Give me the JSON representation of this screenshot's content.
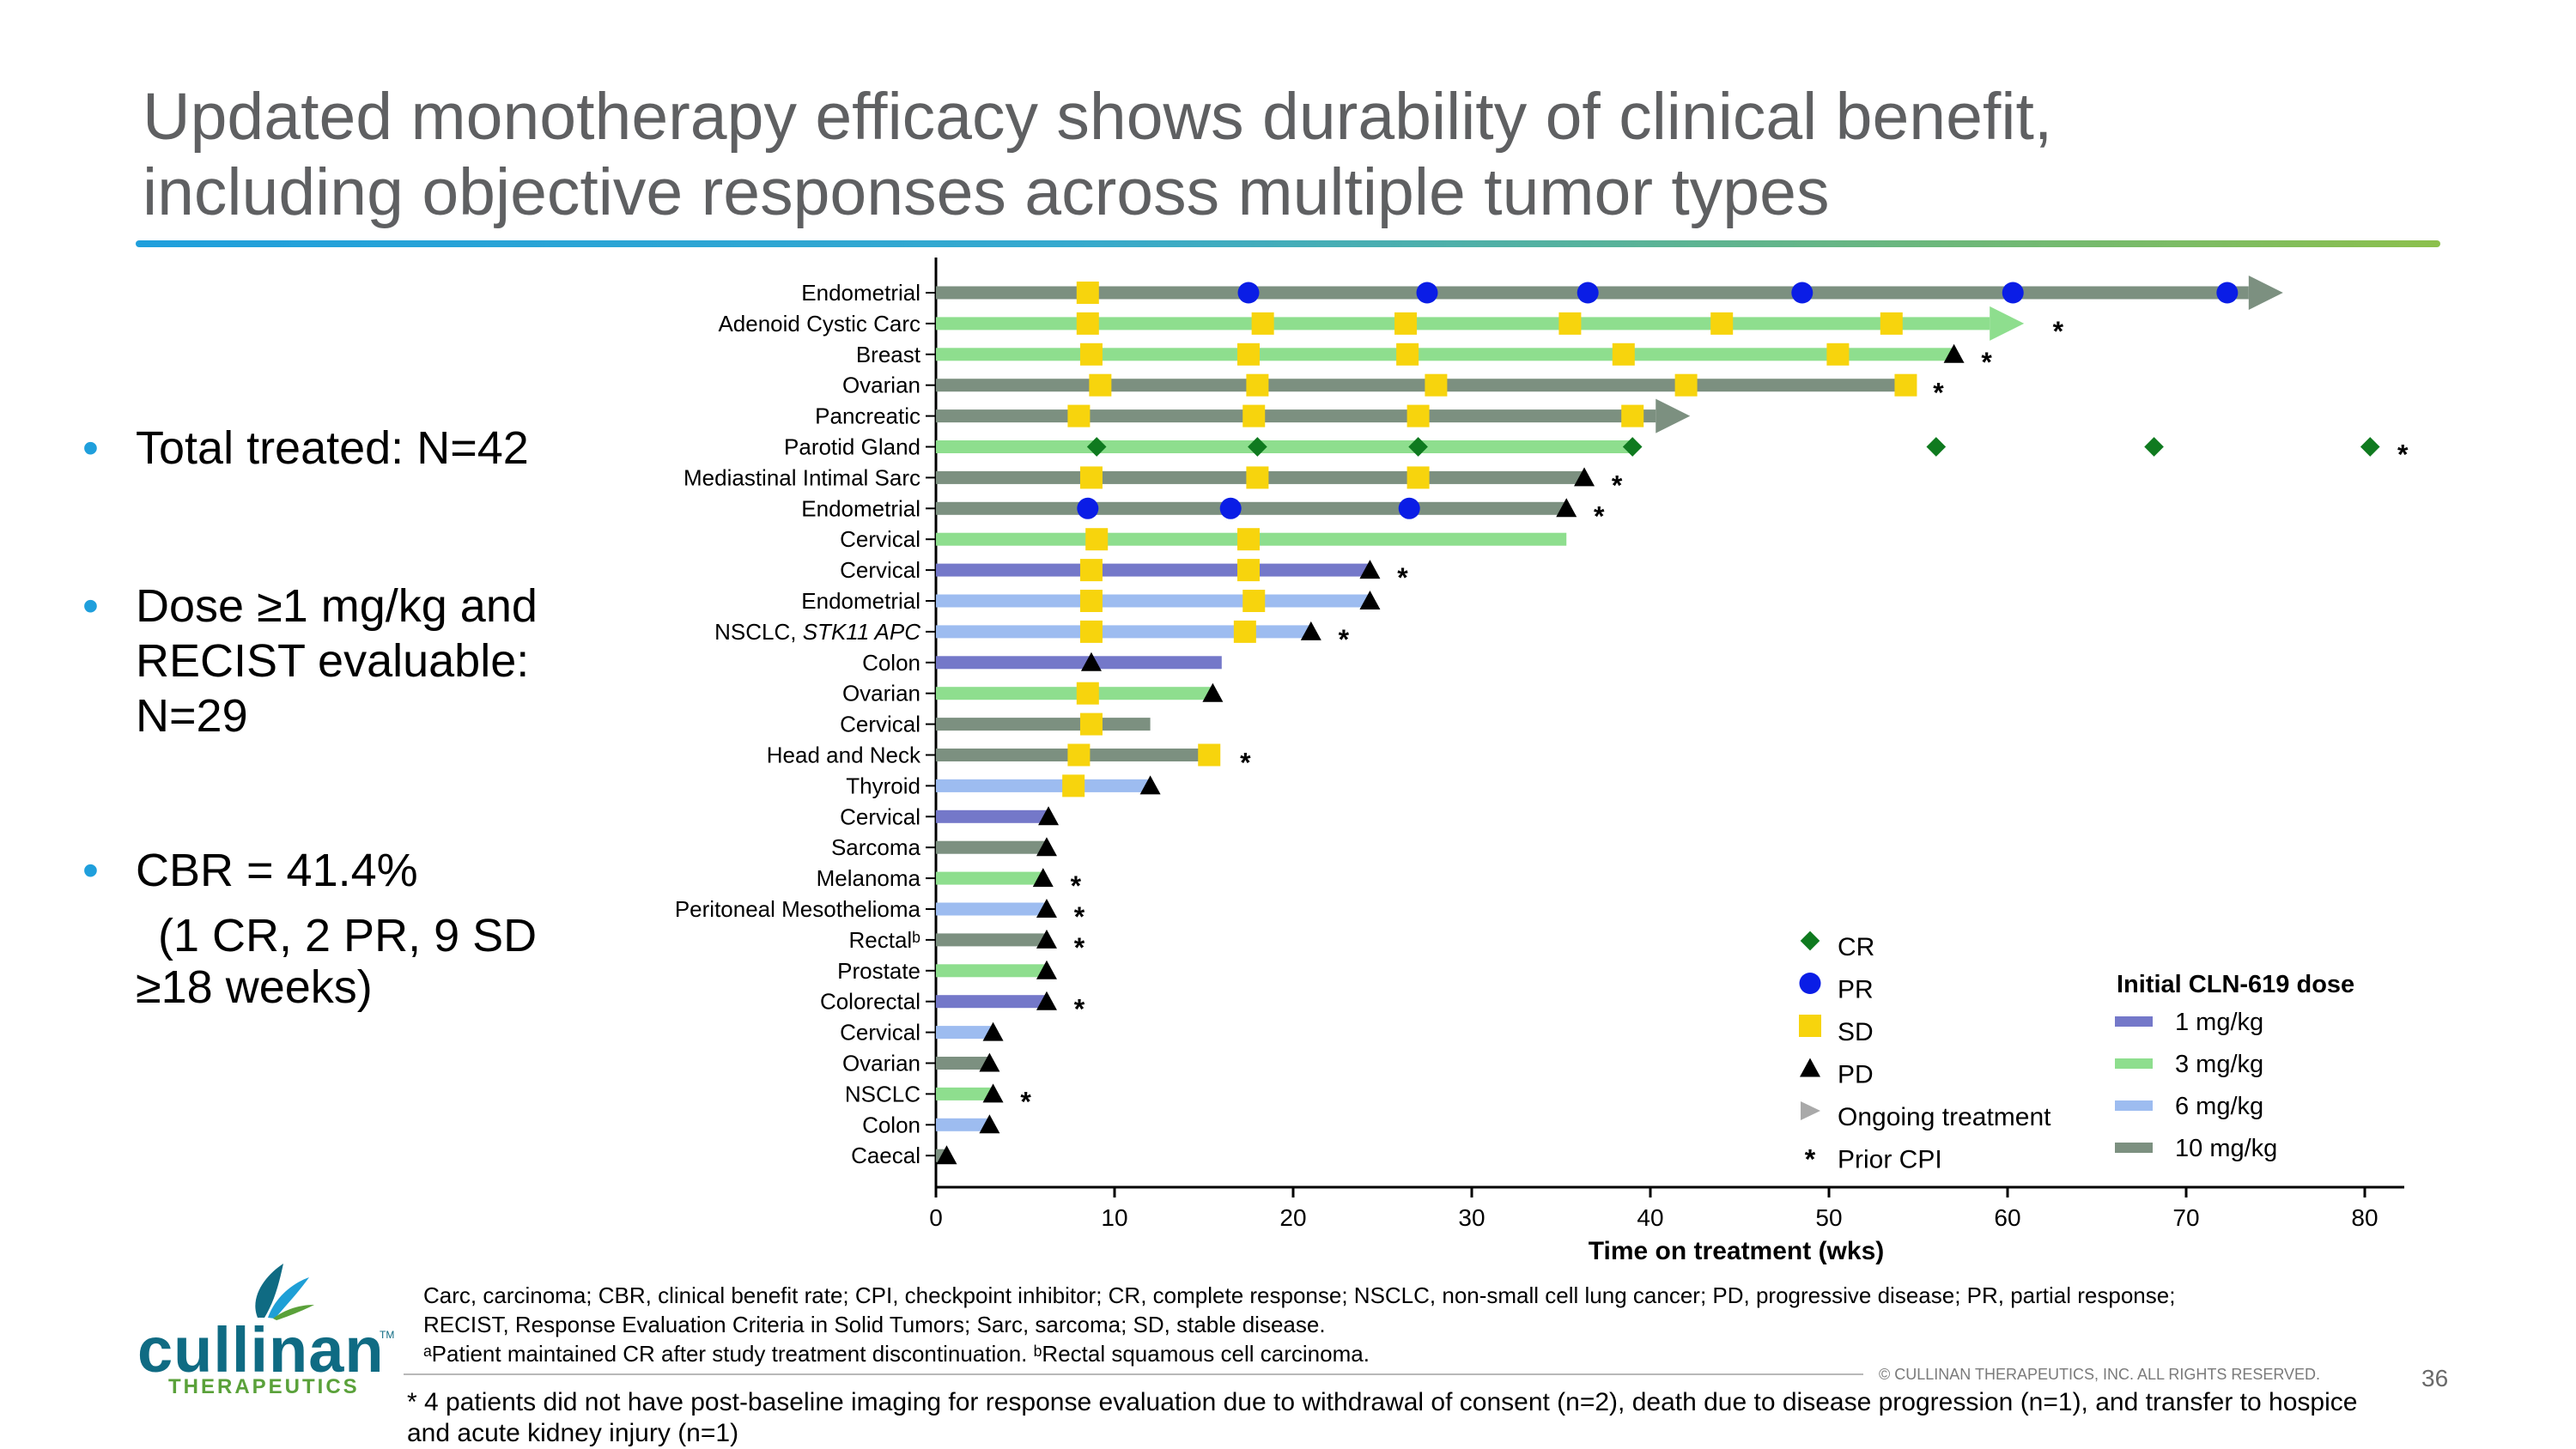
{
  "slide": {
    "title_line1": "Updated monotherapy efficacy shows durability of clinical benefit,",
    "title_line2": "including objective responses across multiple tumor types",
    "bullet1": "Total treated: N=42",
    "bullet2_line1": "Dose ≥1 mg/kg and",
    "bullet2_line2": "RECIST evaluable:",
    "bullet2_line3": "N=29",
    "bullet3_line1": "CBR = 41.4%",
    "bullet3_line2": "(1 CR, 2 PR, 9 SD",
    "bullet3_line3": "≥18 weeks)",
    "footer_line1": "Carc, carcinoma; CBR, clinical benefit rate; CPI, checkpoint inhibitor; CR, complete response; NSCLC, non-small cell lung cancer; PD, progressive disease; PR, partial response;",
    "footer_line2": "RECIST, Response Evaluation Criteria in Solid Tumors; Sarc, sarcoma; SD, stable disease.",
    "footer_line3": "ᵃPatient maintained CR after study treatment discontinuation. ᵇRectal squamous cell carcinoma.",
    "footnote": "* 4 patients did not have post-baseline imaging for response evaluation due to withdrawal of consent (n=2), death due to disease progression (n=1), and transfer to hospice and acute kidney injury (n=1)",
    "copyright": "© CULLINAN THERAPEUTICS, INC. ALL RIGHTS RESERVED.",
    "page_number": "36",
    "logo_word": "cullinan",
    "logo_sub": "THERAPEUTICS",
    "logo_tm": "TM"
  },
  "colors": {
    "1 mg/kg": "#7478c9",
    "3 mg/kg": "#8ede8e",
    "6 mg/kg": "#9dbcf0",
    "10 mg/kg": "#7c9080",
    "CR": "#0f7a1f",
    "PR": "#0a1de6",
    "SD": "#f7d40d",
    "PD": "#000000"
  },
  "chart_data": {
    "type": "swimmer",
    "xlabel": "Time on treatment (wks)",
    "xlim": [
      0,
      82
    ],
    "xticks": [
      0,
      10,
      20,
      30,
      40,
      50,
      60,
      70,
      80
    ],
    "legend_title": "Initial CLN-619 dose",
    "symbol_legend": [
      {
        "key": "CR",
        "label": "CR"
      },
      {
        "key": "PR",
        "label": "PR"
      },
      {
        "key": "SD",
        "label": "SD"
      },
      {
        "key": "PD",
        "label": "PD"
      },
      {
        "key": "ongoing",
        "label": "Ongoing treatment"
      },
      {
        "key": "cpi",
        "label": "Prior CPI"
      }
    ],
    "dose_legend": [
      "1 mg/kg",
      "3 mg/kg",
      "6 mg/kg",
      "10 mg/kg"
    ],
    "patients": [
      {
        "label": "Endometrial",
        "dose": "10 mg/kg",
        "end": 73.5,
        "ongoing": true,
        "cpi": false,
        "events": [
          [
            "SD",
            8.5
          ],
          [
            "PR",
            17.5
          ],
          [
            "PR",
            27.5
          ],
          [
            "PR",
            36.5
          ],
          [
            "PR",
            48.5
          ],
          [
            "PR",
            60.3
          ],
          [
            "PR",
            72.3
          ]
        ]
      },
      {
        "label": "Adenoid Cystic Carc",
        "dose": "3 mg/kg",
        "end": 59.0,
        "ongoing": true,
        "cpi": true,
        "events": [
          [
            "SD",
            8.5
          ],
          [
            "SD",
            18.3
          ],
          [
            "SD",
            26.3
          ],
          [
            "SD",
            35.5
          ],
          [
            "SD",
            44.0
          ],
          [
            "SD",
            53.5
          ]
        ]
      },
      {
        "label": "Breast",
        "dose": "3 mg/kg",
        "end": 57.0,
        "ongoing": false,
        "cpi": true,
        "events": [
          [
            "SD",
            8.7
          ],
          [
            "SD",
            17.5
          ],
          [
            "SD",
            26.4
          ],
          [
            "SD",
            38.5
          ],
          [
            "SD",
            50.5
          ],
          [
            "PD",
            57.0
          ]
        ]
      },
      {
        "label": "Ovarian",
        "dose": "10 mg/kg",
        "end": 54.0,
        "ongoing": false,
        "cpi": true,
        "events": [
          [
            "SD",
            9.2
          ],
          [
            "SD",
            18.0
          ],
          [
            "SD",
            28.0
          ],
          [
            "SD",
            42.0
          ],
          [
            "SD",
            54.3
          ]
        ]
      },
      {
        "label": "Pancreatic",
        "dose": "10 mg/kg",
        "end": 40.3,
        "ongoing": true,
        "cpi": false,
        "events": [
          [
            "SD",
            8.0
          ],
          [
            "SD",
            17.8
          ],
          [
            "SD",
            27.0
          ],
          [
            "SD",
            39.0
          ]
        ]
      },
      {
        "label": "Parotid Gland",
        "dose": "3 mg/kg",
        "end": 39.0,
        "ongoing": false,
        "cpi": true,
        "events": [
          [
            "CR",
            9.0
          ],
          [
            "CR",
            18.0
          ],
          [
            "CR",
            27.0
          ],
          [
            "CR",
            39.0
          ],
          [
            "CR",
            56.0
          ],
          [
            "CR",
            68.2
          ],
          [
            "CR",
            80.3
          ]
        ]
      },
      {
        "label": "Mediastinal Intimal Sarc",
        "dose": "10 mg/kg",
        "end": 36.3,
        "ongoing": false,
        "cpi": true,
        "events": [
          [
            "SD",
            8.7
          ],
          [
            "SD",
            18.0
          ],
          [
            "SD",
            27.0
          ],
          [
            "PD",
            36.3
          ]
        ]
      },
      {
        "label": "Endometrial",
        "dose": "10 mg/kg",
        "end": 35.3,
        "ongoing": false,
        "cpi": true,
        "events": [
          [
            "PR",
            8.5
          ],
          [
            "PR",
            16.5
          ],
          [
            "PR",
            26.5
          ],
          [
            "PD",
            35.3
          ]
        ]
      },
      {
        "label": "Cervical",
        "dose": "3 mg/kg",
        "end": 35.3,
        "ongoing": false,
        "cpi": false,
        "events": [
          [
            "SD",
            9.0
          ],
          [
            "SD",
            17.5
          ]
        ]
      },
      {
        "label": "Cervical",
        "dose": "1 mg/kg",
        "end": 24.3,
        "ongoing": false,
        "cpi": true,
        "events": [
          [
            "SD",
            8.7
          ],
          [
            "SD",
            17.5
          ],
          [
            "PD",
            24.3
          ]
        ]
      },
      {
        "label": "Endometrial",
        "dose": "6 mg/kg",
        "end": 24.3,
        "ongoing": false,
        "cpi": false,
        "events": [
          [
            "SD",
            8.7
          ],
          [
            "SD",
            17.8
          ],
          [
            "PD",
            24.3
          ]
        ]
      },
      {
        "label": "NSCLC, STK11 APC",
        "dose": "6 mg/kg",
        "end": 21.0,
        "ongoing": false,
        "cpi": true,
        "events": [
          [
            "SD",
            8.7
          ],
          [
            "SD",
            17.3
          ],
          [
            "PD",
            21.0
          ]
        ]
      },
      {
        "label": "Colon",
        "dose": "1 mg/kg",
        "end": 16.0,
        "ongoing": false,
        "cpi": false,
        "events": [
          [
            "PD",
            8.7
          ]
        ]
      },
      {
        "label": "Ovarian",
        "dose": "3 mg/kg",
        "end": 15.5,
        "ongoing": false,
        "cpi": false,
        "events": [
          [
            "SD",
            8.5
          ],
          [
            "PD",
            15.5
          ]
        ]
      },
      {
        "label": "Cervical",
        "dose": "10 mg/kg",
        "end": 12.0,
        "ongoing": false,
        "cpi": false,
        "events": [
          [
            "SD",
            8.7
          ]
        ]
      },
      {
        "label": "Head and Neck",
        "dose": "10 mg/kg",
        "end": 15.5,
        "ongoing": false,
        "cpi": true,
        "events": [
          [
            "SD",
            8.0
          ],
          [
            "SD",
            15.3
          ]
        ]
      },
      {
        "label": "Thyroid",
        "dose": "6 mg/kg",
        "end": 12.0,
        "ongoing": false,
        "cpi": false,
        "events": [
          [
            "SD",
            7.7
          ],
          [
            "PD",
            12.0
          ]
        ]
      },
      {
        "label": "Cervical",
        "dose": "1 mg/kg",
        "end": 6.3,
        "ongoing": false,
        "cpi": false,
        "events": [
          [
            "PD",
            6.3
          ]
        ]
      },
      {
        "label": "Sarcoma",
        "dose": "10 mg/kg",
        "end": 6.2,
        "ongoing": false,
        "cpi": false,
        "events": [
          [
            "PD",
            6.2
          ]
        ]
      },
      {
        "label": "Melanoma",
        "dose": "3 mg/kg",
        "end": 6.0,
        "ongoing": false,
        "cpi": true,
        "events": [
          [
            "PD",
            6.0
          ]
        ]
      },
      {
        "label": "Peritoneal Mesothelioma",
        "dose": "6 mg/kg",
        "end": 6.2,
        "ongoing": false,
        "cpi": true,
        "events": [
          [
            "PD",
            6.2
          ]
        ]
      },
      {
        "label": "Rectalᵇ",
        "dose": "10 mg/kg",
        "end": 6.2,
        "ongoing": false,
        "cpi": true,
        "events": [
          [
            "PD",
            6.2
          ]
        ]
      },
      {
        "label": "Prostate",
        "dose": "3 mg/kg",
        "end": 6.2,
        "ongoing": false,
        "cpi": false,
        "events": [
          [
            "PD",
            6.2
          ]
        ]
      },
      {
        "label": "Colorectal",
        "dose": "1 mg/kg",
        "end": 6.2,
        "ongoing": false,
        "cpi": true,
        "events": [
          [
            "PD",
            6.2
          ]
        ]
      },
      {
        "label": "Cervical",
        "dose": "6 mg/kg",
        "end": 3.2,
        "ongoing": false,
        "cpi": false,
        "events": [
          [
            "PD",
            3.2
          ]
        ]
      },
      {
        "label": "Ovarian",
        "dose": "10 mg/kg",
        "end": 3.0,
        "ongoing": false,
        "cpi": false,
        "events": [
          [
            "PD",
            3.0
          ]
        ]
      },
      {
        "label": "NSCLC",
        "dose": "3 mg/kg",
        "end": 3.2,
        "ongoing": false,
        "cpi": true,
        "events": [
          [
            "PD",
            3.2
          ]
        ]
      },
      {
        "label": "Colon",
        "dose": "6 mg/kg",
        "end": 3.0,
        "ongoing": false,
        "cpi": false,
        "events": [
          [
            "PD",
            3.0
          ]
        ]
      },
      {
        "label": "Caecal",
        "dose": "10 mg/kg",
        "end": 0.6,
        "ongoing": false,
        "cpi": false,
        "events": [
          [
            "PD",
            0.6
          ]
        ]
      }
    ]
  }
}
